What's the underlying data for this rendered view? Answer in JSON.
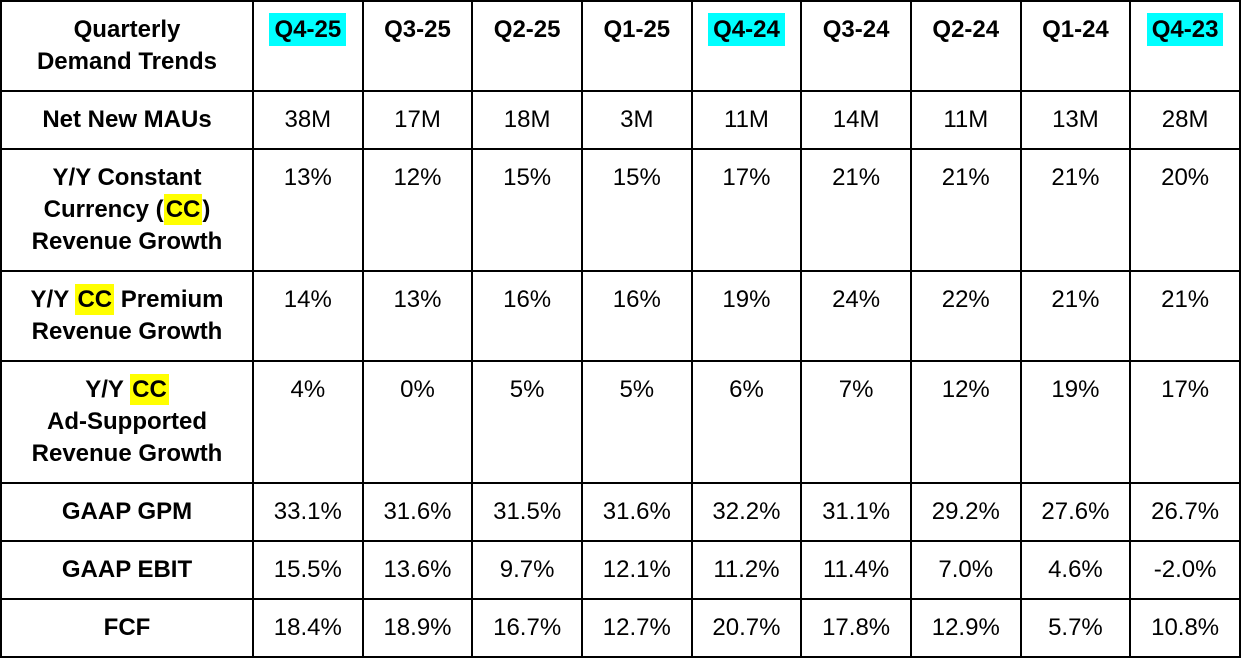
{
  "colors": {
    "header_highlight": "#00ffff",
    "cc_highlight": "#ffff00",
    "border": "#000000",
    "text": "#000000",
    "background": "#ffffff"
  },
  "table": {
    "corner": {
      "lines": [
        "Quarterly",
        "Demand Trends"
      ]
    },
    "columns": [
      {
        "label": "Q4-25",
        "highlighted": true
      },
      {
        "label": "Q3-25",
        "highlighted": false
      },
      {
        "label": "Q2-25",
        "highlighted": false
      },
      {
        "label": "Q1-25",
        "highlighted": false
      },
      {
        "label": "Q4-24",
        "highlighted": true
      },
      {
        "label": "Q3-24",
        "highlighted": false
      },
      {
        "label": "Q2-24",
        "highlighted": false
      },
      {
        "label": "Q1-24",
        "highlighted": false
      },
      {
        "label": "Q4-23",
        "highlighted": true
      }
    ],
    "rows": [
      {
        "id": "net-new-maus",
        "label_lines": [
          [
            {
              "text": "Net New MAUs",
              "highlighted": false
            }
          ]
        ],
        "values": [
          "38M",
          "17M",
          "18M",
          "3M",
          "11M",
          "14M",
          "11M",
          "13M",
          "28M"
        ]
      },
      {
        "id": "yy-constant-currency-revenue-growth",
        "label_lines": [
          [
            {
              "text": "Y/Y Constant",
              "highlighted": false
            }
          ],
          [
            {
              "text": "Currency (",
              "highlighted": false
            },
            {
              "text": "CC",
              "highlighted": true
            },
            {
              "text": ")",
              "highlighted": false
            }
          ],
          [
            {
              "text": "Revenue Growth",
              "highlighted": false
            }
          ]
        ],
        "values": [
          "13%",
          "12%",
          "15%",
          "15%",
          "17%",
          "21%",
          "21%",
          "21%",
          "20%"
        ]
      },
      {
        "id": "yy-cc-premium-revenue-growth",
        "label_lines": [
          [
            {
              "text": "Y/Y ",
              "highlighted": false
            },
            {
              "text": "CC",
              "highlighted": true
            },
            {
              "text": " Premium",
              "highlighted": false
            }
          ],
          [
            {
              "text": "Revenue Growth",
              "highlighted": false
            }
          ]
        ],
        "values": [
          "14%",
          "13%",
          "16%",
          "16%",
          "19%",
          "24%",
          "22%",
          "21%",
          "21%"
        ]
      },
      {
        "id": "yy-cc-ad-supported-revenue-growth",
        "label_lines": [
          [
            {
              "text": "Y/Y ",
              "highlighted": false
            },
            {
              "text": "CC",
              "highlighted": true
            }
          ],
          [
            {
              "text": "Ad-Supported",
              "highlighted": false
            }
          ],
          [
            {
              "text": "Revenue Growth",
              "highlighted": false
            }
          ]
        ],
        "values": [
          "4%",
          "0%",
          "5%",
          "5%",
          "6%",
          "7%",
          "12%",
          "19%",
          "17%"
        ]
      },
      {
        "id": "gaap-gpm",
        "label_lines": [
          [
            {
              "text": "GAAP GPM",
              "highlighted": false
            }
          ]
        ],
        "values": [
          "33.1%",
          "31.6%",
          "31.5%",
          "31.6%",
          "32.2%",
          "31.1%",
          "29.2%",
          "27.6%",
          "26.7%"
        ]
      },
      {
        "id": "gaap-ebit",
        "label_lines": [
          [
            {
              "text": "GAAP EBIT",
              "highlighted": false
            }
          ]
        ],
        "values": [
          "15.5%",
          "13.6%",
          "9.7%",
          "12.1%",
          "11.2%",
          "11.4%",
          "7.0%",
          "4.6%",
          "-2.0%"
        ]
      },
      {
        "id": "fcf",
        "label_lines": [
          [
            {
              "text": "FCF",
              "highlighted": false
            }
          ]
        ],
        "values": [
          "18.4%",
          "18.9%",
          "16.7%",
          "12.7%",
          "20.7%",
          "17.8%",
          "12.9%",
          "5.7%",
          "10.8%"
        ]
      }
    ]
  },
  "chart_data": {
    "type": "table",
    "title": "Quarterly Demand Trends",
    "categories": [
      "Q4-25",
      "Q3-25",
      "Q2-25",
      "Q1-25",
      "Q4-24",
      "Q3-24",
      "Q2-24",
      "Q1-24",
      "Q4-23"
    ],
    "highlighted_categories": [
      "Q4-25",
      "Q4-24",
      "Q4-23"
    ],
    "series": [
      {
        "name": "Net New MAUs",
        "unit": "M",
        "values": [
          38,
          17,
          18,
          3,
          11,
          14,
          11,
          13,
          28
        ]
      },
      {
        "name": "Y/Y Constant Currency (CC) Revenue Growth",
        "unit": "%",
        "values": [
          13,
          12,
          15,
          15,
          17,
          21,
          21,
          21,
          20
        ]
      },
      {
        "name": "Y/Y CC Premium Revenue Growth",
        "unit": "%",
        "values": [
          14,
          13,
          16,
          16,
          19,
          24,
          22,
          21,
          21
        ]
      },
      {
        "name": "Y/Y CC Ad-Supported Revenue Growth",
        "unit": "%",
        "values": [
          4,
          0,
          5,
          5,
          6,
          7,
          12,
          19,
          17
        ]
      },
      {
        "name": "GAAP GPM",
        "unit": "%",
        "values": [
          33.1,
          31.6,
          31.5,
          31.6,
          32.2,
          31.1,
          29.2,
          27.6,
          26.7
        ]
      },
      {
        "name": "GAAP EBIT",
        "unit": "%",
        "values": [
          15.5,
          13.6,
          9.7,
          12.1,
          11.2,
          11.4,
          7.0,
          4.6,
          -2.0
        ]
      },
      {
        "name": "FCF",
        "unit": "%",
        "values": [
          18.4,
          18.9,
          16.7,
          12.7,
          20.7,
          17.8,
          12.9,
          5.7,
          10.8
        ]
      }
    ]
  }
}
